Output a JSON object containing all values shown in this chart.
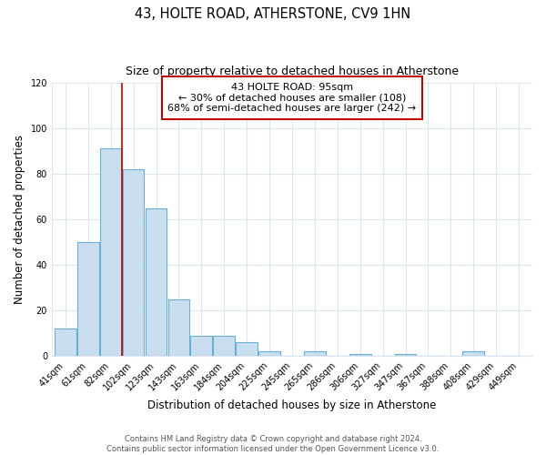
{
  "title": "43, HOLTE ROAD, ATHERSTONE, CV9 1HN",
  "subtitle": "Size of property relative to detached houses in Atherstone",
  "xlabel": "Distribution of detached houses by size in Atherstone",
  "ylabel": "Number of detached properties",
  "bin_labels": [
    "41sqm",
    "61sqm",
    "82sqm",
    "102sqm",
    "123sqm",
    "143sqm",
    "163sqm",
    "184sqm",
    "204sqm",
    "225sqm",
    "245sqm",
    "265sqm",
    "286sqm",
    "306sqm",
    "327sqm",
    "347sqm",
    "367sqm",
    "388sqm",
    "408sqm",
    "429sqm",
    "449sqm"
  ],
  "bar_values": [
    12,
    50,
    91,
    82,
    65,
    25,
    9,
    9,
    6,
    2,
    0,
    2,
    0,
    1,
    0,
    1,
    0,
    0,
    2,
    0,
    0
  ],
  "bar_color": "#c9dff0",
  "bar_edge_color": "#6aaed6",
  "bar_edge_width": 0.8,
  "vline_x": 3.0,
  "vline_color": "#c00000",
  "annotation_title": "43 HOLTE ROAD: 95sqm",
  "annotation_line1": "← 30% of detached houses are smaller (108)",
  "annotation_line2": "68% of semi-detached houses are larger (242) →",
  "annotation_box_color": "#ffffff",
  "annotation_border_color": "#c00000",
  "ylim": [
    0,
    120
  ],
  "yticks": [
    0,
    20,
    40,
    60,
    80,
    100,
    120
  ],
  "footnote1": "Contains HM Land Registry data © Crown copyright and database right 2024.",
  "footnote2": "Contains public sector information licensed under the Open Government Licence v3.0.",
  "bg_color": "#ffffff",
  "grid_color": "#dce6f1",
  "title_fontsize": 10.5,
  "subtitle_fontsize": 9,
  "axis_label_fontsize": 8.5,
  "tick_fontsize": 7,
  "annotation_fontsize": 8,
  "footnote_fontsize": 6
}
